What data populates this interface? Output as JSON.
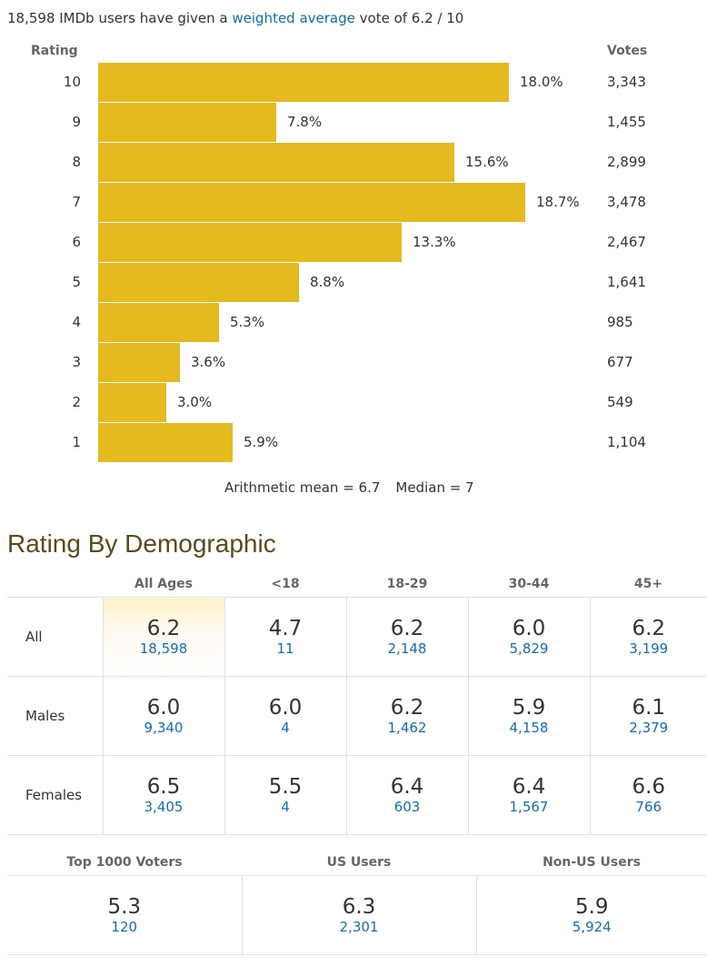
{
  "summary": {
    "prefix": "18,598 IMDb users have given a ",
    "link_text": "weighted average",
    "suffix": " vote of 6.2 / 10"
  },
  "histogram": {
    "rating_header": "Rating",
    "votes_header": "Votes",
    "bar_color": "#e4ba1f",
    "rows": [
      {
        "rating": "10",
        "pct": "18.0%",
        "votes": "3,343"
      },
      {
        "rating": "9",
        "pct": "7.8%",
        "votes": "1,455"
      },
      {
        "rating": "8",
        "pct": "15.6%",
        "votes": "2,899"
      },
      {
        "rating": "7",
        "pct": "18.7%",
        "votes": "3,478"
      },
      {
        "rating": "6",
        "pct": "13.3%",
        "votes": "2,467"
      },
      {
        "rating": "5",
        "pct": "8.8%",
        "votes": "1,641"
      },
      {
        "rating": "4",
        "pct": "5.3%",
        "votes": "985"
      },
      {
        "rating": "3",
        "pct": "3.6%",
        "votes": "677"
      },
      {
        "rating": "2",
        "pct": "3.0%",
        "votes": "549"
      },
      {
        "rating": "1",
        "pct": "5.9%",
        "votes": "1,104"
      }
    ],
    "mean_text": "Arithmetic mean = 6.7",
    "median_text": "Median = 7"
  },
  "demographic": {
    "title": "Rating By Demographic",
    "columns": [
      "All Ages",
      "<18",
      "18-29",
      "30-44",
      "45+"
    ],
    "rows": [
      {
        "label": "All",
        "cells": [
          {
            "rating": "6.2",
            "votes": "18,598"
          },
          {
            "rating": "4.7",
            "votes": "11"
          },
          {
            "rating": "6.2",
            "votes": "2,148"
          },
          {
            "rating": "6.0",
            "votes": "5,829"
          },
          {
            "rating": "6.2",
            "votes": "3,199"
          }
        ]
      },
      {
        "label": "Males",
        "cells": [
          {
            "rating": "6.0",
            "votes": "9,340"
          },
          {
            "rating": "6.0",
            "votes": "4"
          },
          {
            "rating": "6.2",
            "votes": "1,462"
          },
          {
            "rating": "5.9",
            "votes": "4,158"
          },
          {
            "rating": "6.1",
            "votes": "2,379"
          }
        ]
      },
      {
        "label": "Females",
        "cells": [
          {
            "rating": "6.5",
            "votes": "3,405"
          },
          {
            "rating": "5.5",
            "votes": "4"
          },
          {
            "rating": "6.4",
            "votes": "603"
          },
          {
            "rating": "6.4",
            "votes": "1,567"
          },
          {
            "rating": "6.6",
            "votes": "766"
          }
        ]
      }
    ]
  },
  "voters": {
    "columns": [
      "Top 1000 Voters",
      "US Users",
      "Non-US Users"
    ],
    "cells": [
      {
        "rating": "5.3",
        "votes": "120"
      },
      {
        "rating": "6.3",
        "votes": "2,301"
      },
      {
        "rating": "5.9",
        "votes": "5,924"
      }
    ]
  },
  "chart_data": {
    "type": "bar",
    "categories": [
      "10",
      "9",
      "8",
      "7",
      "6",
      "5",
      "4",
      "3",
      "2",
      "1"
    ],
    "values": [
      18.0,
      7.8,
      15.6,
      18.7,
      13.3,
      8.8,
      5.3,
      3.6,
      3.0,
      5.9
    ],
    "votes": [
      3343,
      1455,
      2899,
      3478,
      2467,
      1641,
      985,
      677,
      549,
      1104
    ],
    "xlabel": "",
    "ylabel": "Rating",
    "orientation": "horizontal"
  }
}
